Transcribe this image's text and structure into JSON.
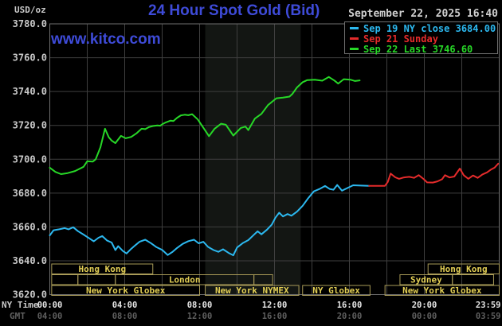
{
  "header": {
    "unit_label": "USD/oz",
    "title": "24 Hour Spot Gold (Bid)",
    "watermark": "www.kitco.com",
    "datetime": "September 22, 2025 16:40"
  },
  "legend": {
    "entries": [
      {
        "text": "Sep 19 NY close 3684.00",
        "color": "#2cb8ef"
      },
      {
        "text": "Sep 21 Sunday",
        "color": "#e42b2b"
      },
      {
        "text": "Sep 22 Last 3746.60",
        "color": "#27d827"
      }
    ]
  },
  "axes": {
    "ny_time_label": "NY Time",
    "gmt_label": "GMT",
    "x_ticks": [
      {
        "h": 0,
        "ny": "00:00",
        "gmt": "04:00"
      },
      {
        "h": 4,
        "ny": "04:00",
        "gmt": "08:00"
      },
      {
        "h": 8,
        "ny": "08:00",
        "gmt": "12:00"
      },
      {
        "h": 12,
        "ny": "12:00",
        "gmt": "16:00"
      },
      {
        "h": 16,
        "ny": "16:00",
        "gmt": "20:00"
      },
      {
        "h": 20,
        "ny": "20:00",
        "gmt": "00:00"
      },
      {
        "h": 23.983,
        "ny": "23:59",
        "gmt": "03:59"
      }
    ],
    "y_ticks": [
      3620,
      3640,
      3660,
      3680,
      3700,
      3720,
      3740,
      3760,
      3780
    ]
  },
  "chart_data": {
    "type": "line",
    "title": "24 Hour Spot Gold (Bid)",
    "ylabel": "USD/oz",
    "xlabel": "NY Time (hours 0-24)",
    "ylim": [
      3620,
      3780
    ],
    "xlim": [
      0,
      24
    ],
    "grid": true,
    "highlight_band_hours": [
      8.3,
      13.4
    ],
    "series": [
      {
        "name": "Sep 19 NY close",
        "color": "#2cb8ef",
        "points": [
          [
            0,
            3655
          ],
          [
            0.2,
            3658
          ],
          [
            0.5,
            3658.6
          ],
          [
            0.8,
            3659.3
          ],
          [
            1.0,
            3658.6
          ],
          [
            1.25,
            3659.8
          ],
          [
            1.5,
            3657.5
          ],
          [
            1.8,
            3655.5
          ],
          [
            2.1,
            3653.3
          ],
          [
            2.35,
            3651.5
          ],
          [
            2.6,
            3653.6
          ],
          [
            2.8,
            3654.6
          ],
          [
            3.05,
            3652
          ],
          [
            3.3,
            3650.8
          ],
          [
            3.5,
            3646.3
          ],
          [
            3.65,
            3648.6
          ],
          [
            3.9,
            3645.8
          ],
          [
            4.1,
            3644.3
          ],
          [
            4.3,
            3646.6
          ],
          [
            4.55,
            3649
          ],
          [
            4.8,
            3651.3
          ],
          [
            5.1,
            3652.4
          ],
          [
            5.4,
            3650.4
          ],
          [
            5.7,
            3648
          ],
          [
            6.0,
            3646.4
          ],
          [
            6.3,
            3643.4
          ],
          [
            6.55,
            3645.2
          ],
          [
            6.8,
            3647.6
          ],
          [
            7.1,
            3650
          ],
          [
            7.4,
            3651.6
          ],
          [
            7.7,
            3652.4
          ],
          [
            7.95,
            3650.3
          ],
          [
            8.2,
            3651.2
          ],
          [
            8.45,
            3648.2
          ],
          [
            8.75,
            3646.3
          ],
          [
            9.0,
            3645.3
          ],
          [
            9.25,
            3646.8
          ],
          [
            9.55,
            3644.6
          ],
          [
            9.8,
            3643.2
          ],
          [
            10.0,
            3647.8
          ],
          [
            10.3,
            3650.4
          ],
          [
            10.6,
            3652.2
          ],
          [
            10.9,
            3655.4
          ],
          [
            11.1,
            3657.4
          ],
          [
            11.3,
            3655.6
          ],
          [
            11.6,
            3658.4
          ],
          [
            11.85,
            3661.3
          ],
          [
            12.05,
            3665.5
          ],
          [
            12.25,
            3668.4
          ],
          [
            12.45,
            3666.2
          ],
          [
            12.7,
            3667.6
          ],
          [
            12.9,
            3666.6
          ],
          [
            13.2,
            3669
          ],
          [
            13.5,
            3672.5
          ],
          [
            13.8,
            3677
          ],
          [
            14.1,
            3681
          ],
          [
            14.4,
            3682.4
          ],
          [
            14.7,
            3684.2
          ],
          [
            14.95,
            3682.4
          ],
          [
            15.15,
            3682
          ],
          [
            15.35,
            3684.8
          ],
          [
            15.6,
            3681.4
          ],
          [
            15.9,
            3683
          ],
          [
            16.2,
            3684.6
          ],
          [
            16.6,
            3684.4
          ],
          [
            17.05,
            3684.3
          ]
        ]
      },
      {
        "name": "Sep 21 Sunday",
        "color": "#e42b2b",
        "points": [
          [
            17.05,
            3684.3
          ],
          [
            17.9,
            3684.3
          ],
          [
            18.05,
            3686.6
          ],
          [
            18.2,
            3691.5
          ],
          [
            18.45,
            3689.3
          ],
          [
            18.65,
            3688.4
          ],
          [
            18.9,
            3689.2
          ],
          [
            19.2,
            3689.6
          ],
          [
            19.45,
            3689.0
          ],
          [
            19.7,
            3690.6
          ],
          [
            19.95,
            3688.4
          ],
          [
            20.15,
            3686.3
          ],
          [
            20.45,
            3686.2
          ],
          [
            20.7,
            3686.9
          ],
          [
            20.95,
            3688.2
          ],
          [
            21.1,
            3690.6
          ],
          [
            21.35,
            3689.2
          ],
          [
            21.6,
            3689.8
          ],
          [
            21.9,
            3694.5
          ],
          [
            22.1,
            3690.6
          ],
          [
            22.35,
            3688.4
          ],
          [
            22.6,
            3690.4
          ],
          [
            22.85,
            3689.0
          ],
          [
            23.1,
            3691.0
          ],
          [
            23.35,
            3692.2
          ],
          [
            23.55,
            3693.8
          ],
          [
            23.75,
            3695.0
          ],
          [
            23.95,
            3697.4
          ]
        ]
      },
      {
        "name": "Sep 22 Last",
        "color": "#27d827",
        "points": [
          [
            0,
            3695
          ],
          [
            0.3,
            3692.5
          ],
          [
            0.6,
            3691.2
          ],
          [
            0.95,
            3691.8
          ],
          [
            1.35,
            3693
          ],
          [
            1.8,
            3695.5
          ],
          [
            2.0,
            3698.8
          ],
          [
            2.3,
            3698.6
          ],
          [
            2.45,
            3700
          ],
          [
            2.7,
            3707
          ],
          [
            2.95,
            3718
          ],
          [
            3.15,
            3713
          ],
          [
            3.3,
            3711
          ],
          [
            3.5,
            3709.5
          ],
          [
            3.8,
            3713.8
          ],
          [
            4.05,
            3712.4
          ],
          [
            4.35,
            3713.2
          ],
          [
            4.65,
            3715.5
          ],
          [
            4.9,
            3718
          ],
          [
            5.1,
            3717.8
          ],
          [
            5.3,
            3719
          ],
          [
            5.5,
            3719.6
          ],
          [
            5.75,
            3720
          ],
          [
            5.9,
            3719.8
          ],
          [
            6.05,
            3721
          ],
          [
            6.2,
            3721.8
          ],
          [
            6.45,
            3722.8
          ],
          [
            6.6,
            3722.6
          ],
          [
            6.8,
            3724.5
          ],
          [
            7.0,
            3725.9
          ],
          [
            7.2,
            3726.3
          ],
          [
            7.4,
            3726.0
          ],
          [
            7.6,
            3726.6
          ],
          [
            7.9,
            3723.5
          ],
          [
            8.15,
            3719.5
          ],
          [
            8.5,
            3713.6
          ],
          [
            8.8,
            3718
          ],
          [
            9.15,
            3721
          ],
          [
            9.4,
            3720.4
          ],
          [
            9.8,
            3714
          ],
          [
            10.2,
            3718.5
          ],
          [
            10.45,
            3719.3
          ],
          [
            10.6,
            3717.2
          ],
          [
            10.95,
            3724
          ],
          [
            11.3,
            3726.8
          ],
          [
            11.65,
            3732
          ],
          [
            12.1,
            3736
          ],
          [
            12.45,
            3736.4
          ],
          [
            12.8,
            3737
          ],
          [
            12.95,
            3738.5
          ],
          [
            13.2,
            3742.4
          ],
          [
            13.5,
            3745.5
          ],
          [
            13.75,
            3746.8
          ],
          [
            14.15,
            3747
          ],
          [
            14.55,
            3746.4
          ],
          [
            14.9,
            3748.6
          ],
          [
            15.2,
            3746.5
          ],
          [
            15.4,
            3744.7
          ],
          [
            15.7,
            3747.3
          ],
          [
            16.05,
            3747
          ],
          [
            16.3,
            3746.2
          ],
          [
            16.55,
            3746.6
          ]
        ]
      }
    ]
  },
  "sessions": {
    "rows": [
      {
        "boxes": [
          {
            "start_h": 0.1,
            "end_h": 5.5,
            "label": "Hong Kong"
          },
          {
            "start_h": 20.2,
            "end_h": 24,
            "label": "Hong Kong"
          }
        ]
      },
      {
        "boxes": [
          {
            "start_h": 0.1,
            "end_h": 1.5,
            "label": ""
          },
          {
            "start_h": 1.5,
            "end_h": 3.5,
            "label": ""
          },
          {
            "start_h": 3.5,
            "end_h": 10.9,
            "label": "London"
          },
          {
            "start_h": 10.9,
            "end_h": 11.9,
            "label": ""
          },
          {
            "start_h": 18.7,
            "end_h": 21.5,
            "label": "Sydney"
          },
          {
            "start_h": 21.5,
            "end_h": 23.7,
            "label": ""
          }
        ]
      },
      {
        "boxes": [
          {
            "start_h": 0.1,
            "end_h": 8.0,
            "label": "New York Globex"
          },
          {
            "start_h": 8.3,
            "end_h": 13.3,
            "label": "New York NYMEX"
          },
          {
            "start_h": 13.5,
            "end_h": 17.1,
            "label": "NY Globex"
          },
          {
            "start_h": 17.9,
            "end_h": 24,
            "label": "New York Globex"
          }
        ]
      }
    ]
  },
  "colors": {
    "background": "#000000",
    "accent_blue": "#3e4bd8",
    "grid": "#3f3f3f",
    "border": "#6f6f6f",
    "band": "#131613",
    "session_border": "#a99b58",
    "session_text": "#e3cf55",
    "y_label": "#c9c9c9",
    "ny_tick": "#e4e4e4",
    "gmt_tick": "#5f5f5f",
    "green": "#27d827",
    "cyan": "#2cb8ef",
    "red": "#e42b2b"
  }
}
